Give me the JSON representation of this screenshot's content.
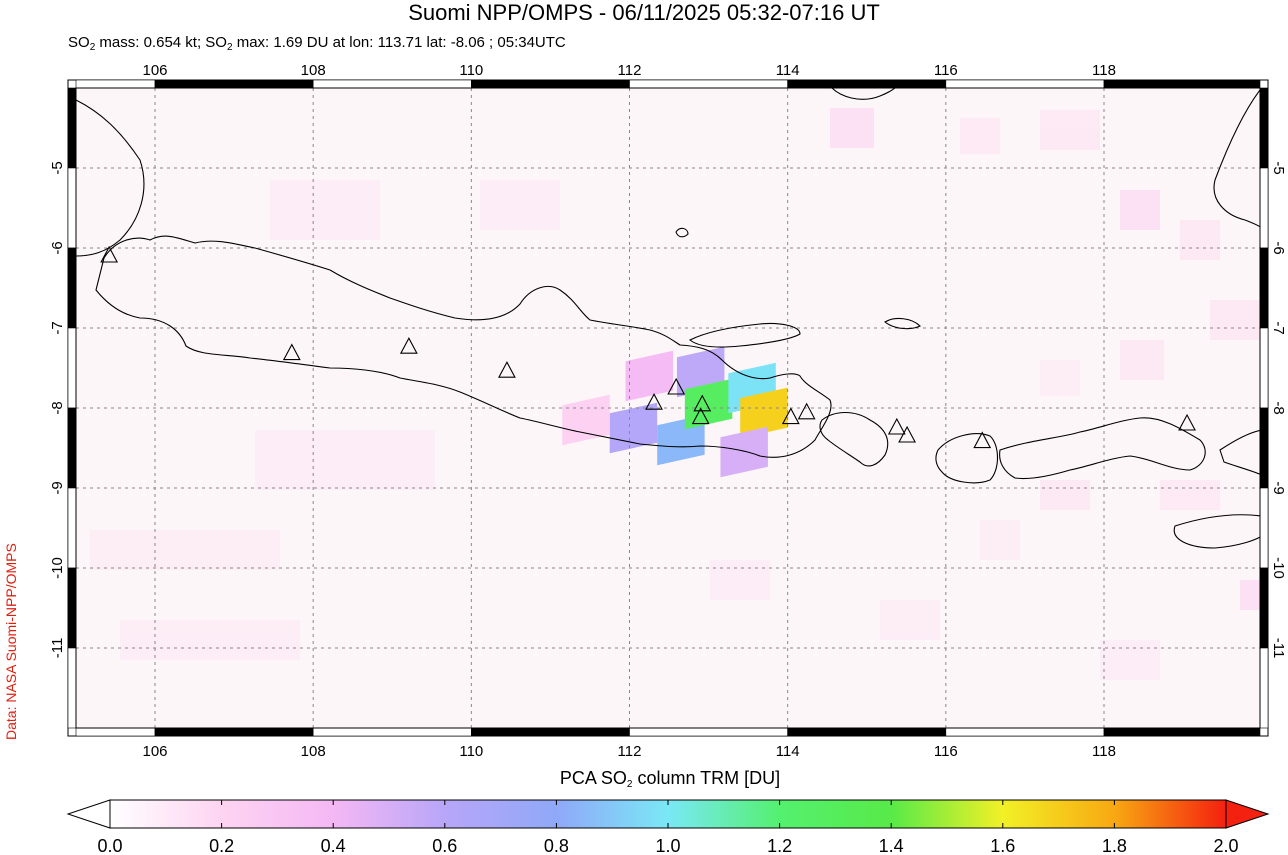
{
  "title": "Suomi NPP/OMPS - 06/11/2025 05:32-07:16 UT",
  "subtitle": {
    "mass_prefix": "SO",
    "mass_sub": "2",
    "mass_text": " mass: 0.654 kt; SO",
    "max_sub": "2",
    "max_text": " max: 1.69 DU at lon: 113.71 lat: -8.06 ; 05:34UTC"
  },
  "credit": "Data: NASA Suomi-NPP/OMPS",
  "colorbar": {
    "label_prefix": "PCA SO",
    "label_sub": "2",
    "label_suffix": " column TRM [DU]",
    "ticks": [
      "0.0",
      "0.2",
      "0.4",
      "0.6",
      "0.8",
      "1.0",
      "1.2",
      "1.4",
      "1.6",
      "1.8",
      "2.0"
    ],
    "min": 0.0,
    "max": 2.0
  },
  "map": {
    "lon_range": [
      105,
      120
    ],
    "lat_range": [
      -12,
      -4
    ],
    "lon_ticks": [
      "106",
      "108",
      "110",
      "112",
      "114",
      "116",
      "118"
    ],
    "lat_ticks": [
      "-5",
      "-6",
      "-7",
      "-8",
      "-9",
      "-10",
      "-11"
    ],
    "grid": true,
    "volcanoes": [
      {
        "lon": 105.42,
        "lat": -6.1
      },
      {
        "lon": 107.73,
        "lat": -7.32
      },
      {
        "lon": 109.21,
        "lat": -7.24
      },
      {
        "lon": 110.45,
        "lat": -7.54
      },
      {
        "lon": 112.31,
        "lat": -7.94
      },
      {
        "lon": 112.59,
        "lat": -7.75
      },
      {
        "lon": 112.92,
        "lat": -7.96
      },
      {
        "lon": 112.9,
        "lat": -8.12
      },
      {
        "lon": 114.04,
        "lat": -8.12
      },
      {
        "lon": 114.24,
        "lat": -8.06
      },
      {
        "lon": 115.38,
        "lat": -8.25
      },
      {
        "lon": 115.51,
        "lat": -8.35
      },
      {
        "lon": 116.46,
        "lat": -8.42
      },
      {
        "lon": 119.05,
        "lat": -8.2
      }
    ],
    "so2_pixels": [
      {
        "lon": 112.05,
        "lat": -8.25,
        "value": 0.62
      },
      {
        "lon": 112.65,
        "lat": -8.4,
        "value": 0.85
      },
      {
        "lon": 112.25,
        "lat": -7.6,
        "value": 0.38
      },
      {
        "lon": 112.9,
        "lat": -7.55,
        "value": 0.58
      },
      {
        "lon": 113.0,
        "lat": -7.95,
        "value": 1.28
      },
      {
        "lon": 113.55,
        "lat": -7.75,
        "value": 0.98
      },
      {
        "lon": 113.7,
        "lat": -8.06,
        "value": 1.69
      },
      {
        "lon": 113.45,
        "lat": -8.55,
        "value": 0.5
      },
      {
        "lon": 111.45,
        "lat": -8.15,
        "value": 0.22
      }
    ]
  }
}
